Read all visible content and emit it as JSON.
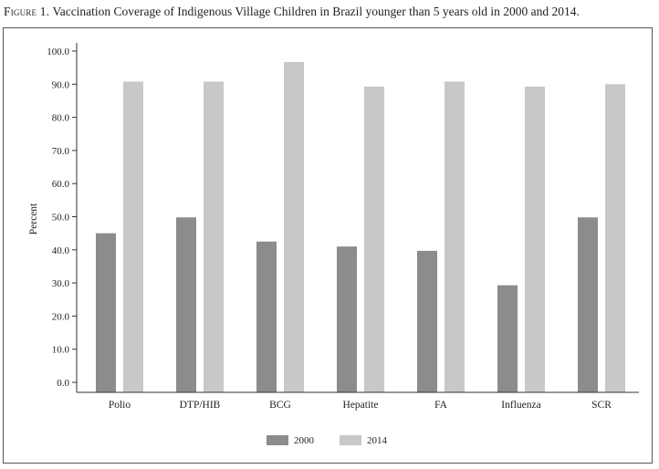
{
  "caption": {
    "prefix": "Figure 1.",
    "text": "Vaccination Coverage of Indigenous Village Children in Brazil younger than 5 years old in 2000 and 2014."
  },
  "chart_data": {
    "type": "bar",
    "title": "Figure 1. Vaccination Coverage of Indigenous Village Children in Brazil younger than 5 years old in 2000 and 2014.",
    "ylabel": "Percent",
    "xlabel": "",
    "ylim": [
      0,
      100
    ],
    "yticks": [
      "0.0",
      "10.0",
      "20.0",
      "30.0",
      "40.0",
      "50.0",
      "60.0",
      "70.0",
      "80.0",
      "90.0",
      "100.0"
    ],
    "grid": false,
    "legend_position": "bottom",
    "categories": [
      "Polio",
      "DTP/HIB",
      "BCG",
      "Hepatite",
      "FA",
      "Influenza",
      "SCR"
    ],
    "series": [
      {
        "name": "2000",
        "color": "#8c8c8c",
        "values": [
          45.0,
          49.8,
          42.5,
          41.0,
          39.7,
          29.3,
          49.8
        ]
      },
      {
        "name": "2014",
        "color": "#c8c8c8",
        "values": [
          90.8,
          90.8,
          96.7,
          89.3,
          90.8,
          89.3,
          90.0
        ]
      }
    ]
  }
}
